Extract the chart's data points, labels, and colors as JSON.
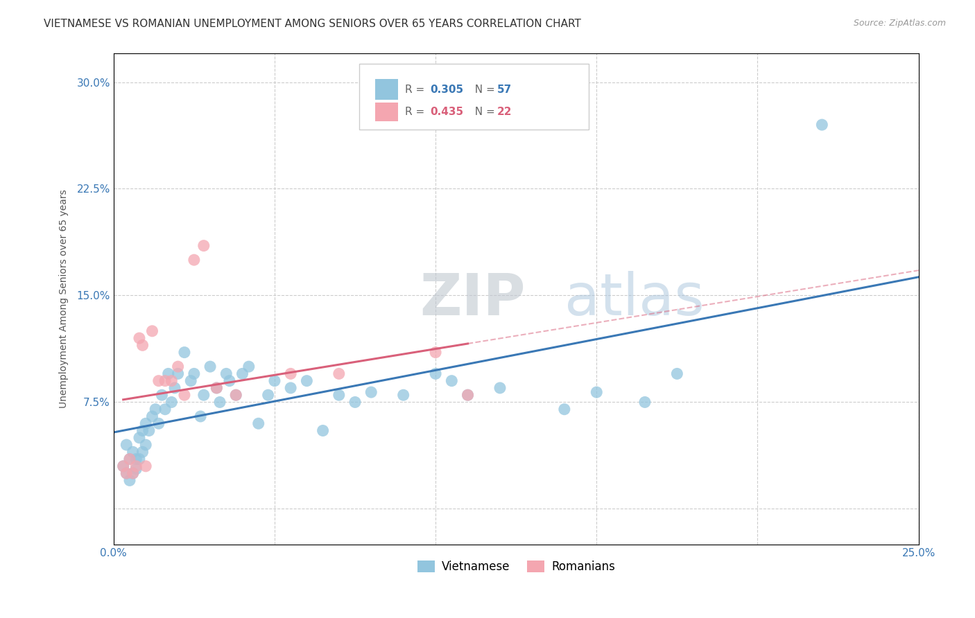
{
  "title": "VIETNAMESE VS ROMANIAN UNEMPLOYMENT AMONG SENIORS OVER 65 YEARS CORRELATION CHART",
  "source": "Source: ZipAtlas.com",
  "ylabel": "Unemployment Among Seniors over 65 years",
  "xlim": [
    0.0,
    0.25
  ],
  "ylim": [
    -0.025,
    0.32
  ],
  "xticks": [
    0.0,
    0.05,
    0.1,
    0.15,
    0.2,
    0.25
  ],
  "yticks": [
    0.0,
    0.075,
    0.15,
    0.225,
    0.3
  ],
  "yticklabels": [
    "",
    "7.5%",
    "15.0%",
    "22.5%",
    "30.0%"
  ],
  "watermark_zip": "ZIP",
  "watermark_atlas": "atlas",
  "legend_r1": "R = 0.305",
  "legend_n1": "N = 57",
  "legend_r2": "R = 0.435",
  "legend_n2": "N = 22",
  "legend_label1": "Vietnamese",
  "legend_label2": "Romanians",
  "blue_color": "#92c5de",
  "pink_color": "#f4a6b0",
  "blue_line_color": "#3a78b5",
  "pink_line_color": "#d9607a",
  "title_fontsize": 11,
  "axis_label_fontsize": 10,
  "tick_fontsize": 11,
  "vietnamese_x": [
    0.003,
    0.004,
    0.004,
    0.005,
    0.005,
    0.006,
    0.006,
    0.007,
    0.007,
    0.008,
    0.008,
    0.009,
    0.009,
    0.01,
    0.01,
    0.011,
    0.012,
    0.013,
    0.014,
    0.015,
    0.016,
    0.017,
    0.018,
    0.019,
    0.02,
    0.022,
    0.024,
    0.025,
    0.027,
    0.028,
    0.03,
    0.032,
    0.033,
    0.035,
    0.036,
    0.038,
    0.04,
    0.042,
    0.045,
    0.048,
    0.05,
    0.055,
    0.06,
    0.065,
    0.07,
    0.075,
    0.08,
    0.09,
    0.1,
    0.105,
    0.11,
    0.12,
    0.14,
    0.15,
    0.165,
    0.175,
    0.22
  ],
  "vietnamese_y": [
    0.03,
    0.045,
    0.025,
    0.035,
    0.02,
    0.04,
    0.025,
    0.035,
    0.028,
    0.05,
    0.035,
    0.055,
    0.04,
    0.06,
    0.045,
    0.055,
    0.065,
    0.07,
    0.06,
    0.08,
    0.07,
    0.095,
    0.075,
    0.085,
    0.095,
    0.11,
    0.09,
    0.095,
    0.065,
    0.08,
    0.1,
    0.085,
    0.075,
    0.095,
    0.09,
    0.08,
    0.095,
    0.1,
    0.06,
    0.08,
    0.09,
    0.085,
    0.09,
    0.055,
    0.08,
    0.075,
    0.082,
    0.08,
    0.095,
    0.09,
    0.08,
    0.085,
    0.07,
    0.082,
    0.075,
    0.095,
    0.27
  ],
  "romanian_x": [
    0.003,
    0.004,
    0.005,
    0.006,
    0.007,
    0.008,
    0.009,
    0.01,
    0.012,
    0.014,
    0.016,
    0.018,
    0.02,
    0.022,
    0.025,
    0.028,
    0.032,
    0.038,
    0.055,
    0.07,
    0.1,
    0.11
  ],
  "romanian_y": [
    0.03,
    0.025,
    0.035,
    0.025,
    0.03,
    0.12,
    0.115,
    0.03,
    0.125,
    0.09,
    0.09,
    0.09,
    0.1,
    0.08,
    0.175,
    0.185,
    0.085,
    0.08,
    0.095,
    0.095,
    0.11,
    0.08
  ]
}
